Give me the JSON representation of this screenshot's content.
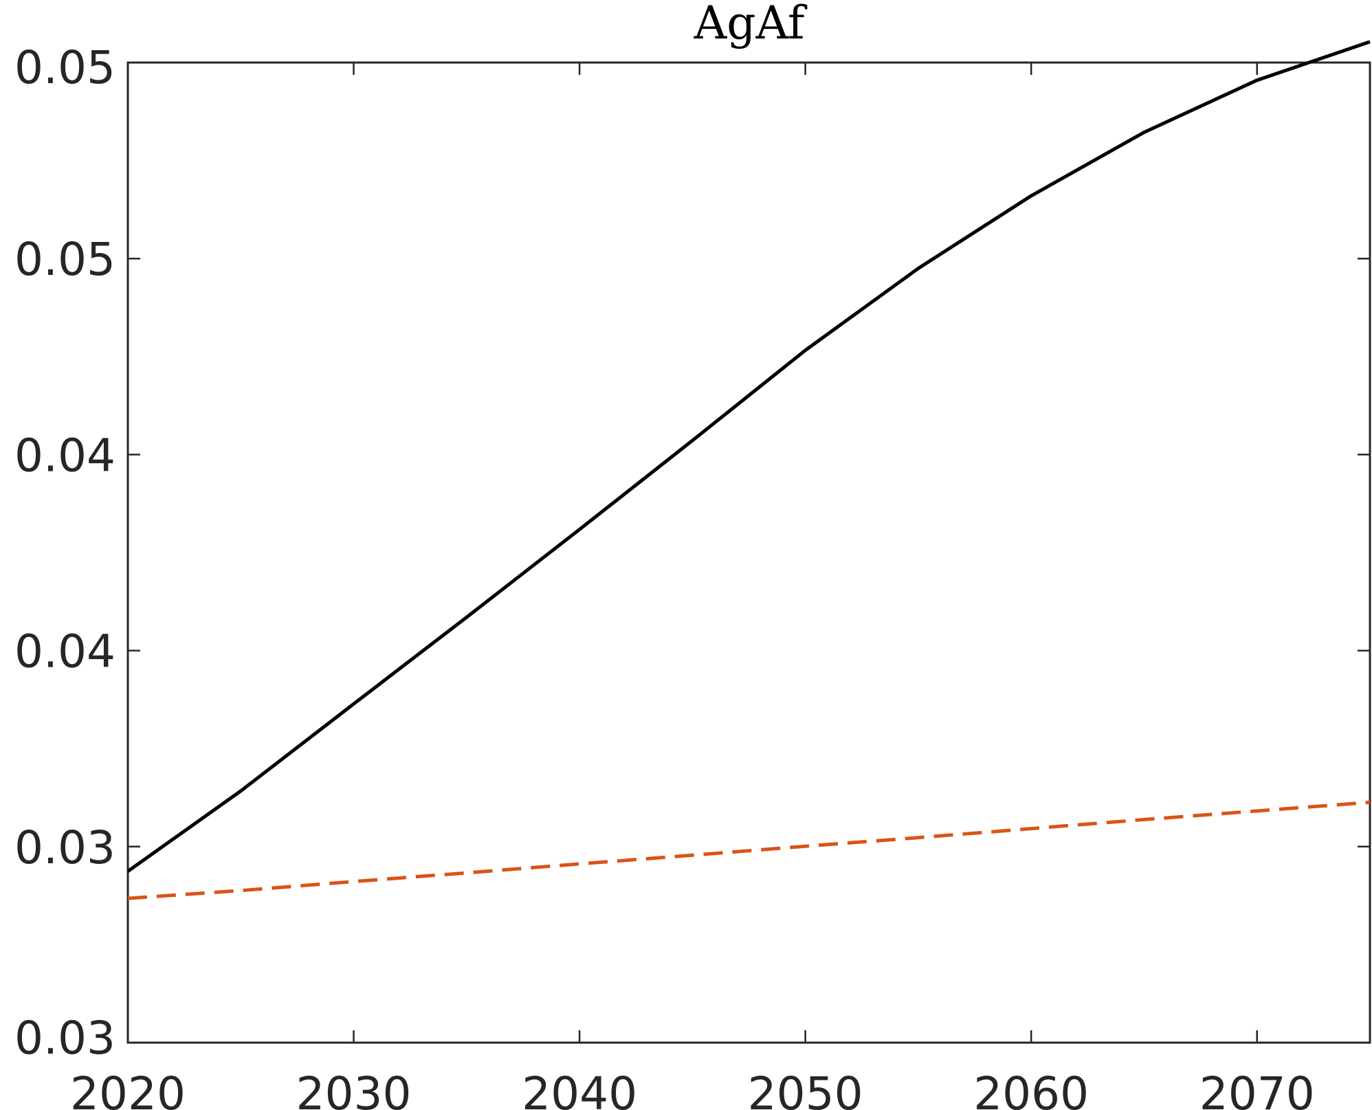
{
  "chart_data": {
    "type": "line",
    "title": "AgAf",
    "xlabel": "",
    "ylabel": "",
    "xlim": [
      2020,
      2075
    ],
    "ylim": [
      0.03,
      0.055
    ],
    "x_ticks": [
      2020,
      2030,
      2040,
      2050,
      2060,
      2070
    ],
    "x_tick_labels": [
      "2020",
      "2030",
      "2040",
      "2050",
      "2060",
      "2070"
    ],
    "y_ticks": [
      0.03,
      0.035,
      0.04,
      0.045,
      0.05,
      0.055
    ],
    "y_tick_labels": [
      "0.03",
      "0.03",
      "0.04",
      "0.04",
      "0.05",
      "0.05"
    ],
    "grid": false,
    "x": [
      2020,
      2025,
      2030,
      2035,
      2040,
      2045,
      2050,
      2055,
      2060,
      2065,
      2070,
      2075
    ],
    "series": [
      {
        "values": [
          0.03437,
          0.03642,
          0.03864,
          0.04085,
          0.04309,
          0.04536,
          0.04766,
          0.04975,
          0.0516,
          0.05322,
          0.05455,
          0.05553
        ],
        "color": "#000000",
        "style": "solid"
      },
      {
        "values": [
          0.03368,
          0.03388,
          0.03411,
          0.03433,
          0.03456,
          0.03478,
          0.03501,
          0.03523,
          0.03546,
          0.03569,
          0.03591,
          0.03613
        ],
        "color": "#d95319",
        "style": "dashed"
      }
    ]
  }
}
